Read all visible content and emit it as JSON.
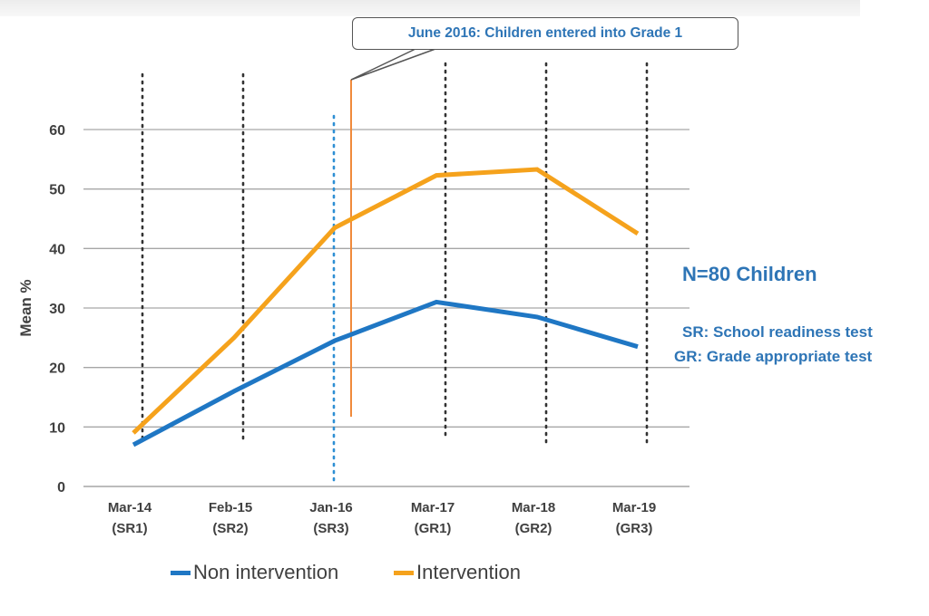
{
  "chart_data": {
    "type": "line",
    "categories": [
      [
        "Mar-14",
        "(SR1)"
      ],
      [
        "Feb-15",
        "(SR2)"
      ],
      [
        "Jan-16",
        "(SR3)"
      ],
      [
        "Mar-17",
        "(GR1)"
      ],
      [
        "Mar-18",
        "(GR2)"
      ],
      [
        "Mar-19",
        "(GR3)"
      ]
    ],
    "series": [
      {
        "name": "Non intervention",
        "color": "#1f77c4",
        "values": [
          7,
          16,
          24.5,
          31,
          28.5,
          23.5
        ]
      },
      {
        "name": "Intervention",
        "color": "#f5a21c",
        "values": [
          9,
          25,
          43.5,
          52.3,
          53.3,
          42.5
        ]
      }
    ],
    "ylabel": "Mean %",
    "xlabel": "",
    "ylim": [
      0,
      60
    ],
    "yticks": [
      0,
      10,
      20,
      30,
      40,
      50,
      60
    ],
    "grid": true,
    "legend": "bottom",
    "marker_line_color": "#f08a3c"
  },
  "annotation": "June 2016: Children entered into Grade 1",
  "notes": {
    "n": "N=80 Children",
    "sr": "SR: School readiness test",
    "gr": "GR: Grade appropriate test"
  }
}
